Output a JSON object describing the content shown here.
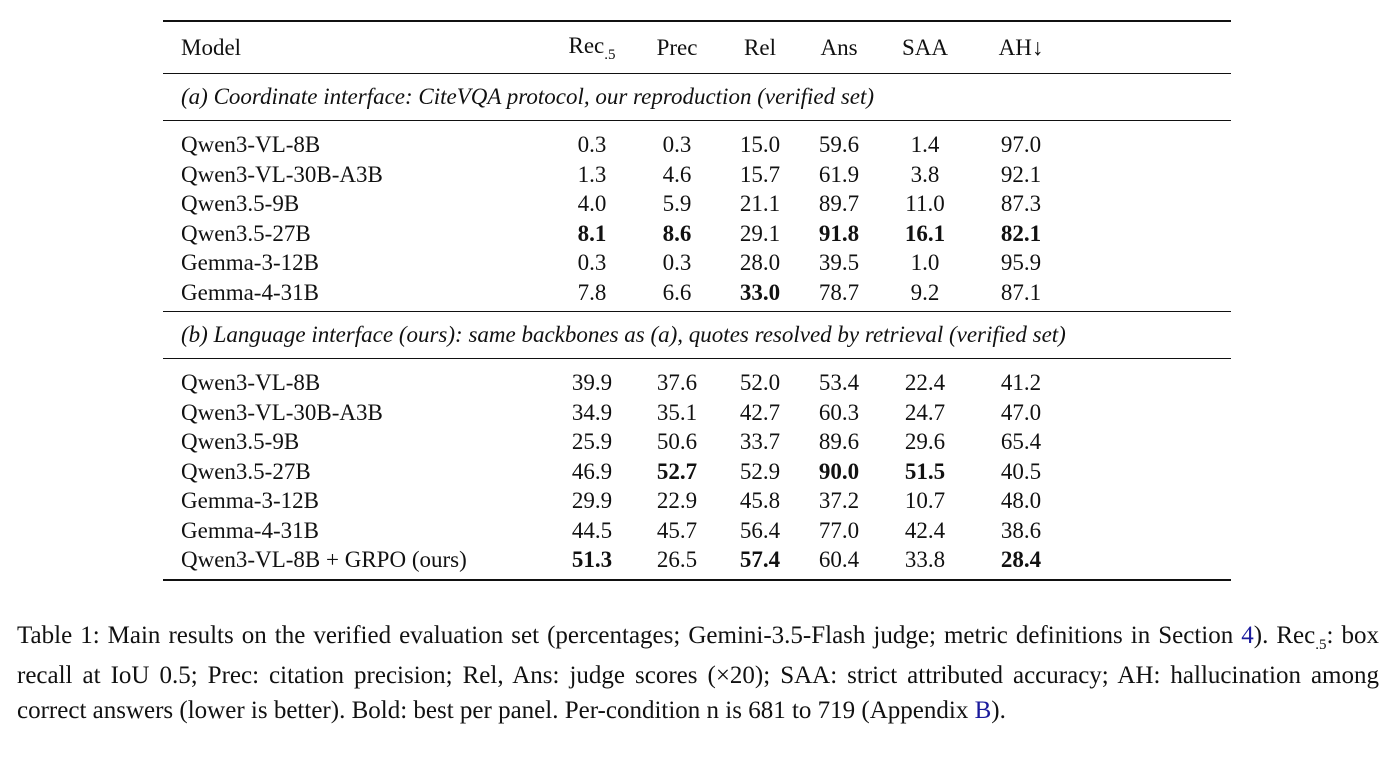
{
  "table": {
    "headers": {
      "model": "Model",
      "rec_main": "Rec",
      "rec_sub": ".5",
      "prec": "Prec",
      "rel": "Rel",
      "ans": "Ans",
      "saa": "SAA",
      "ah": "AH↓"
    },
    "panels": [
      {
        "title": "(a) Coordinate interface: CiteVQA protocol, our reproduction (verified set)",
        "rows": [
          {
            "model": "Qwen3-VL-8B",
            "rec": "0.3",
            "prec": "0.3",
            "rel": "15.0",
            "ans": "59.6",
            "saa": "1.4",
            "ah": "97.0",
            "bold": []
          },
          {
            "model": "Qwen3-VL-30B-A3B",
            "rec": "1.3",
            "prec": "4.6",
            "rel": "15.7",
            "ans": "61.9",
            "saa": "3.8",
            "ah": "92.1",
            "bold": []
          },
          {
            "model": "Qwen3.5-9B",
            "rec": "4.0",
            "prec": "5.9",
            "rel": "21.1",
            "ans": "89.7",
            "saa": "11.0",
            "ah": "87.3",
            "bold": []
          },
          {
            "model": "Qwen3.5-27B",
            "rec": "8.1",
            "prec": "8.6",
            "rel": "29.1",
            "ans": "91.8",
            "saa": "16.1",
            "ah": "82.1",
            "bold": [
              "rec",
              "prec",
              "ans",
              "saa",
              "ah"
            ]
          },
          {
            "model": "Gemma-3-12B",
            "rec": "0.3",
            "prec": "0.3",
            "rel": "28.0",
            "ans": "39.5",
            "saa": "1.0",
            "ah": "95.9",
            "bold": []
          },
          {
            "model": "Gemma-4-31B",
            "rec": "7.8",
            "prec": "6.6",
            "rel": "33.0",
            "ans": "78.7",
            "saa": "9.2",
            "ah": "87.1",
            "bold": [
              "rel"
            ]
          }
        ]
      },
      {
        "title": "(b) Language interface (ours): same backbones as (a), quotes resolved by retrieval (verified set)",
        "rows": [
          {
            "model": "Qwen3-VL-8B",
            "rec": "39.9",
            "prec": "37.6",
            "rel": "52.0",
            "ans": "53.4",
            "saa": "22.4",
            "ah": "41.2",
            "bold": []
          },
          {
            "model": "Qwen3-VL-30B-A3B",
            "rec": "34.9",
            "prec": "35.1",
            "rel": "42.7",
            "ans": "60.3",
            "saa": "24.7",
            "ah": "47.0",
            "bold": []
          },
          {
            "model": "Qwen3.5-9B",
            "rec": "25.9",
            "prec": "50.6",
            "rel": "33.7",
            "ans": "89.6",
            "saa": "29.6",
            "ah": "65.4",
            "bold": []
          },
          {
            "model": "Qwen3.5-27B",
            "rec": "46.9",
            "prec": "52.7",
            "rel": "52.9",
            "ans": "90.0",
            "saa": "51.5",
            "ah": "40.5",
            "bold": [
              "prec",
              "ans",
              "saa"
            ]
          },
          {
            "model": "Gemma-3-12B",
            "rec": "29.9",
            "prec": "22.9",
            "rel": "45.8",
            "ans": "37.2",
            "saa": "10.7",
            "ah": "48.0",
            "bold": []
          },
          {
            "model": "Gemma-4-31B",
            "rec": "44.5",
            "prec": "45.7",
            "rel": "56.4",
            "ans": "77.0",
            "saa": "42.4",
            "ah": "38.6",
            "bold": []
          },
          {
            "model": "Qwen3-VL-8B + GRPO (ours)",
            "rec": "51.3",
            "prec": "26.5",
            "rel": "57.4",
            "ans": "60.4",
            "saa": "33.8",
            "ah": "28.4",
            "bold": [
              "rec",
              "rel",
              "ah"
            ]
          }
        ]
      }
    ]
  },
  "caption": {
    "part1": "Table 1: Main results on the verified evaluation set (percentages; Gemini-3.5-Flash judge; metric definitions in Section ",
    "ref_section": "4",
    "part2": ").  Rec",
    "rec_sub": ".5",
    "part3": ": box recall at IoU 0.5; Prec: citation precision; Rel, Ans: judge scores (×20); SAA: strict attributed accuracy; AH: hallucination among correct answers (lower is better). Bold: best per panel. Per-condition n is 681 to 719 (Appendix ",
    "ref_appendix": "B",
    "part4": ")."
  }
}
